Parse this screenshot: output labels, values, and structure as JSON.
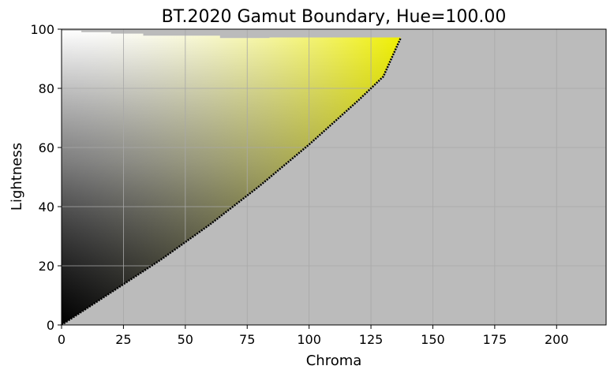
{
  "chart_data": {
    "type": "area",
    "title": "BT.2020 Gamut Boundary, Hue=100.00",
    "xlabel": "Chroma",
    "ylabel": "Lightness",
    "xlim": [
      0,
      220
    ],
    "ylim": [
      0,
      100
    ],
    "xticks": [
      0,
      25,
      50,
      75,
      100,
      125,
      150,
      175,
      200
    ],
    "yticks": [
      0,
      20,
      40,
      60,
      80,
      100
    ],
    "grid": true,
    "background_color": "#bbbbbb",
    "gradient_colors": {
      "black": "#000000",
      "white": "#ffffff",
      "gray": "#8c8c8c",
      "yellow": "#f2f200",
      "olive": "#6b6b00"
    },
    "boundary_color": "#000000",
    "boundary": {
      "x": [
        0,
        10,
        20,
        30,
        40,
        50,
        60,
        70,
        80,
        90,
        100,
        110,
        120,
        130,
        137
      ],
      "y": [
        0,
        5.5,
        11,
        16.5,
        22,
        28,
        34,
        40.5,
        47,
        54,
        61,
        68.5,
        76,
        84,
        97
      ]
    },
    "top_edge": {
      "x": [
        0,
        8,
        8,
        20,
        20,
        33,
        33,
        64,
        64,
        84,
        84,
        137
      ],
      "y": [
        99.5,
        99.5,
        99,
        99,
        98.5,
        98.5,
        97.8,
        97.8,
        97,
        97,
        97.2,
        97.2
      ]
    }
  }
}
